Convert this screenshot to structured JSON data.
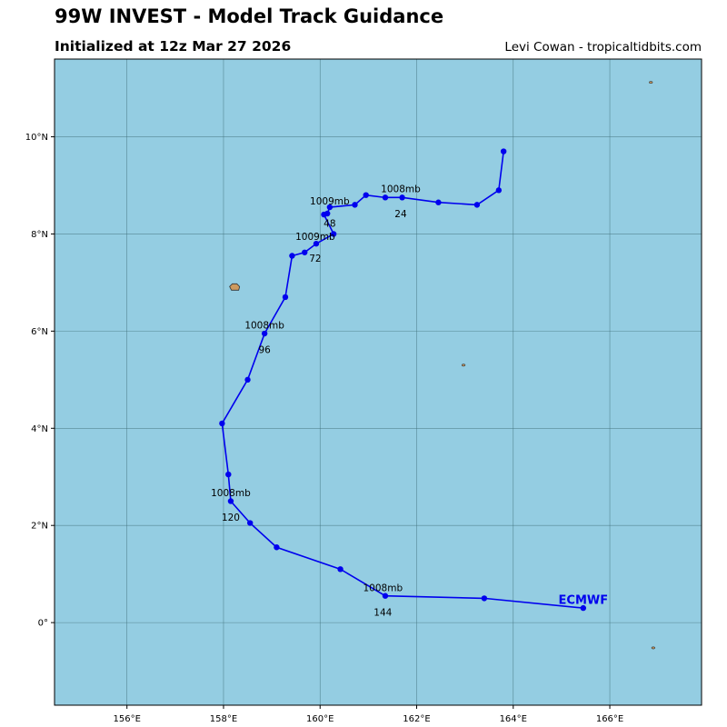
{
  "header": {
    "title": "99W INVEST - Model Track Guidance",
    "subtitle": "Initialized at 12z Mar 27 2026",
    "credit": "Levi Cowan - tropicaltidbits.com"
  },
  "colors": {
    "ocean": "#94cde2",
    "land": "#cd9a5f",
    "grid": "#3f6f7a",
    "track": "#0000ee"
  },
  "map": {
    "lon_range": [
      154.5,
      167.9
    ],
    "lat_range": [
      -1.7,
      11.6
    ],
    "lon_ticks": [
      {
        "value": 156,
        "label": "156°E"
      },
      {
        "value": 158,
        "label": "158°E"
      },
      {
        "value": 160,
        "label": "160°E"
      },
      {
        "value": 162,
        "label": "162°E"
      },
      {
        "value": 164,
        "label": "164°E"
      },
      {
        "value": 166,
        "label": "166°E"
      }
    ],
    "lat_ticks": [
      {
        "value": 0,
        "label": "0°"
      },
      {
        "value": 2,
        "label": "2°N"
      },
      {
        "value": 4,
        "label": "4°N"
      },
      {
        "value": 6,
        "label": "6°N"
      },
      {
        "value": 8,
        "label": "8°N"
      },
      {
        "value": 10,
        "label": "10°N"
      }
    ],
    "islands": [
      {
        "name": "pohnpei",
        "lon": 158.22,
        "lat": 6.88
      },
      {
        "name": "islet-east",
        "lon": 162.97,
        "lat": 5.3
      },
      {
        "name": "islet-northeast",
        "lon": 166.85,
        "lat": 11.12
      },
      {
        "name": "islet-southeast",
        "lon": 166.9,
        "lat": -0.52
      }
    ]
  },
  "model": {
    "name": "ECMWF",
    "track": [
      {
        "lon": 163.8,
        "lat": 9.7
      },
      {
        "lon": 163.7,
        "lat": 8.9
      },
      {
        "lon": 163.25,
        "lat": 8.6
      },
      {
        "lon": 162.45,
        "lat": 8.65
      },
      {
        "lon": 161.7,
        "lat": 8.75
      },
      {
        "lon": 161.35,
        "lat": 8.75
      },
      {
        "lon": 160.95,
        "lat": 8.8
      },
      {
        "lon": 160.72,
        "lat": 8.6
      },
      {
        "lon": 160.2,
        "lat": 8.55
      },
      {
        "lon": 160.15,
        "lat": 8.42
      },
      {
        "lon": 160.08,
        "lat": 8.4
      },
      {
        "lon": 160.28,
        "lat": 8.0
      },
      {
        "lon": 159.92,
        "lat": 7.8
      },
      {
        "lon": 159.68,
        "lat": 7.62
      },
      {
        "lon": 159.42,
        "lat": 7.55
      },
      {
        "lon": 159.28,
        "lat": 6.7
      },
      {
        "lon": 158.85,
        "lat": 5.95
      },
      {
        "lon": 158.5,
        "lat": 5.0
      },
      {
        "lon": 157.97,
        "lat": 4.1
      },
      {
        "lon": 158.1,
        "lat": 3.05
      },
      {
        "lon": 158.15,
        "lat": 2.5
      },
      {
        "lon": 158.55,
        "lat": 2.05
      },
      {
        "lon": 159.1,
        "lat": 1.55
      },
      {
        "lon": 160.42,
        "lat": 1.1
      },
      {
        "lon": 161.35,
        "lat": 0.55
      },
      {
        "lon": 163.4,
        "lat": 0.5
      },
      {
        "lon": 165.45,
        "lat": 0.3
      }
    ],
    "annotations": [
      {
        "text": "1008mb",
        "lon": 161.67,
        "lat": 8.93
      },
      {
        "text": "24",
        "lon": 161.67,
        "lat": 8.42
      },
      {
        "text": "1009mb",
        "lon": 160.2,
        "lat": 8.68
      },
      {
        "text": "48",
        "lon": 160.2,
        "lat": 8.22
      },
      {
        "text": "1009mb",
        "lon": 159.9,
        "lat": 7.95
      },
      {
        "text": "72",
        "lon": 159.9,
        "lat": 7.5
      },
      {
        "text": "1008mb",
        "lon": 158.85,
        "lat": 6.13
      },
      {
        "text": "96",
        "lon": 158.85,
        "lat": 5.62
      },
      {
        "text": "1008mb",
        "lon": 158.15,
        "lat": 2.68
      },
      {
        "text": "120",
        "lon": 158.15,
        "lat": 2.17
      },
      {
        "text": "1008mb",
        "lon": 161.3,
        "lat": 0.72
      },
      {
        "text": "144",
        "lon": 161.3,
        "lat": 0.22
      }
    ],
    "label_position": {
      "lon": 165.45,
      "lat": 0.48
    }
  }
}
